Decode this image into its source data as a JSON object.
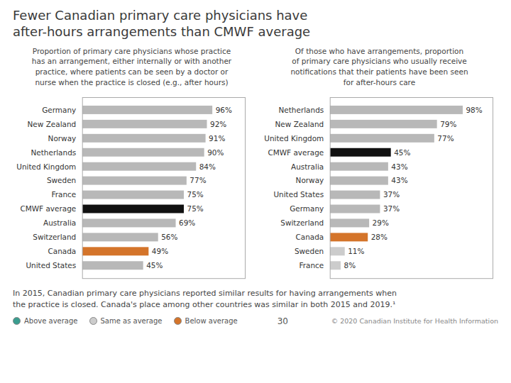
{
  "title": "Fewer Canadian primary care physicians have\nafter-hours arrangements than CMWF average",
  "chart_data": [
    {
      "type": "bar",
      "orientation": "horizontal",
      "subtitle": "Proportion of primary care physicians whose practice\nhas an arrangement, either internally or with another\npractice, where patients can be seen by a doctor or\nnurse when the practice is closed (e.g., after hours)",
      "categories": [
        "Germany",
        "New Zealand",
        "Norway",
        "Netherlands",
        "United Kingdom",
        "Sweden",
        "France",
        "CMWF average",
        "Australia",
        "Switzerland",
        "Canada",
        "United States"
      ],
      "values": [
        96,
        92,
        91,
        90,
        84,
        77,
        75,
        75,
        69,
        56,
        49,
        45
      ],
      "value_labels": [
        "96%",
        "92%",
        "91%",
        "90%",
        "84%",
        "77%",
        "75%",
        "75%",
        "69%",
        "56%",
        "49%",
        "45%"
      ],
      "colors": [
        "#b8b8b8",
        "#b8b8b8",
        "#b8b8b8",
        "#b8b8b8",
        "#b8b8b8",
        "#b8b8b8",
        "#b8b8b8",
        "#111111",
        "#b8b8b8",
        "#b8b8b8",
        "#d4742a",
        "#b8b8b8"
      ],
      "xlim": [
        0,
        120
      ],
      "data_labels": true,
      "tick_labels": "y",
      "grid": false
    },
    {
      "type": "bar",
      "orientation": "horizontal",
      "subtitle": "Of those who have arrangements, proportion\nof primary care physicians who usually receive\nnotifications that their patients have been seen\nfor after-hours care",
      "categories": [
        "Netherlands",
        "New Zealand",
        "United Kingdom",
        "CMWF average",
        "Australia",
        "Norway",
        "United States",
        "Germany",
        "Switzerland",
        "Canada",
        "Sweden",
        "France"
      ],
      "values": [
        98,
        79,
        77,
        45,
        43,
        43,
        37,
        37,
        29,
        28,
        11,
        8
      ],
      "value_labels": [
        "98%",
        "79%",
        "77%",
        "45%",
        "43%",
        "43%",
        "37%",
        "37%",
        "29%",
        "28%",
        "11%",
        "8%"
      ],
      "colors": [
        "#b8b8b8",
        "#b8b8b8",
        "#b8b8b8",
        "#111111",
        "#b8b8b8",
        "#b8b8b8",
        "#b8b8b8",
        "#b8b8b8",
        "#b8b8b8",
        "#d4742a",
        "#cccccc",
        "#cccccc"
      ],
      "xlim": [
        0,
        120
      ],
      "data_labels": true,
      "tick_labels": "y",
      "grid": false
    }
  ],
  "annotations": [
    "In 2015, Canadian primary care physicians reported similar results for having arrangements when\nthe practice is closed. Canada's place among other countries was similar in both 2015 and 2019.¹",
    "30",
    "© 2020 Canadian Institute for Health Information"
  ],
  "legend_items": [
    {
      "name": "Above average",
      "color": "#3a9d8f"
    },
    {
      "name": "Same as average",
      "color": "#cccccc"
    },
    {
      "name": "Below average",
      "color": "#d4742a"
    }
  ]
}
